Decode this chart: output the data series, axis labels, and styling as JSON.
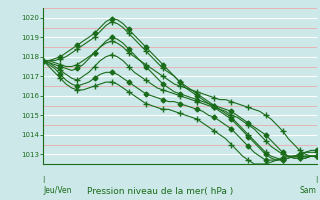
{
  "title": "Pression niveau de la mer( hPa )",
  "bg_color": "#cce8e8",
  "grid_color_major": "#ffffff",
  "grid_color_minor": "#f0a0a0",
  "line_color": "#1a6b1a",
  "marker_color": "#1a6b1a",
  "ylim": [
    1012.5,
    1020.5
  ],
  "yticks": [
    1013,
    1014,
    1015,
    1016,
    1017,
    1018,
    1019,
    1020
  ],
  "xlabel_left": "Jeu/Ven",
  "xlabel_right": "Sam",
  "n_points": 49,
  "series": [
    [
      1017.8,
      1017.8,
      1017.7,
      1017.6,
      1017.5,
      1017.5,
      1017.6,
      1017.8,
      1018.0,
      1018.2,
      1018.5,
      1018.7,
      1018.8,
      1018.7,
      1018.5,
      1018.2,
      1018.0,
      1017.8,
      1017.6,
      1017.4,
      1017.2,
      1017.0,
      1016.8,
      1016.6,
      1016.5,
      1016.4,
      1016.3,
      1016.2,
      1016.1,
      1016.0,
      1015.9,
      1015.8,
      1015.8,
      1015.7,
      1015.6,
      1015.5,
      1015.4,
      1015.3,
      1015.2,
      1015.0,
      1014.8,
      1014.5,
      1014.2,
      1013.8,
      1013.5,
      1013.2,
      1013.0,
      1012.9,
      1012.9
    ],
    [
      1017.8,
      1017.7,
      1017.6,
      1017.5,
      1017.4,
      1017.3,
      1017.4,
      1017.6,
      1017.9,
      1018.2,
      1018.5,
      1018.8,
      1019.0,
      1018.9,
      1018.7,
      1018.4,
      1018.1,
      1017.8,
      1017.5,
      1017.2,
      1016.9,
      1016.6,
      1016.4,
      1016.2,
      1016.1,
      1016.0,
      1015.9,
      1015.8,
      1015.7,
      1015.6,
      1015.5,
      1015.4,
      1015.3,
      1015.2,
      1015.0,
      1014.8,
      1014.6,
      1014.4,
      1014.2,
      1014.0,
      1013.7,
      1013.4,
      1013.1,
      1012.9,
      1012.8,
      1012.8,
      1012.8,
      1012.9,
      1012.9
    ],
    [
      1017.8,
      1017.7,
      1017.5,
      1017.3,
      1017.1,
      1016.9,
      1016.8,
      1017.0,
      1017.2,
      1017.5,
      1017.8,
      1018.0,
      1018.1,
      1018.0,
      1017.8,
      1017.5,
      1017.2,
      1017.0,
      1016.8,
      1016.6,
      1016.4,
      1016.3,
      1016.2,
      1016.1,
      1016.0,
      1015.9,
      1015.8,
      1015.7,
      1015.6,
      1015.5,
      1015.4,
      1015.3,
      1015.2,
      1015.0,
      1014.9,
      1014.7,
      1014.5,
      1014.3,
      1014.0,
      1013.7,
      1013.4,
      1013.2,
      1013.0,
      1012.9,
      1012.8,
      1012.8,
      1012.8,
      1012.9,
      1012.9
    ],
    [
      1017.8,
      1017.6,
      1017.4,
      1017.1,
      1016.8,
      1016.6,
      1016.5,
      1016.6,
      1016.7,
      1016.9,
      1017.1,
      1017.2,
      1017.2,
      1017.1,
      1016.9,
      1016.7,
      1016.5,
      1016.3,
      1016.1,
      1016.0,
      1015.9,
      1015.8,
      1015.7,
      1015.7,
      1015.6,
      1015.5,
      1015.4,
      1015.3,
      1015.2,
      1015.0,
      1014.9,
      1014.7,
      1014.5,
      1014.3,
      1014.0,
      1013.7,
      1013.4,
      1013.1,
      1012.9,
      1012.7,
      1012.7,
      1012.7,
      1012.8,
      1012.9,
      1012.9,
      1012.9,
      1012.9,
      1012.9,
      1012.9
    ],
    [
      1017.8,
      1017.5,
      1017.2,
      1016.9,
      1016.6,
      1016.4,
      1016.3,
      1016.3,
      1016.4,
      1016.5,
      1016.6,
      1016.7,
      1016.7,
      1016.6,
      1016.4,
      1016.2,
      1016.0,
      1015.8,
      1015.6,
      1015.5,
      1015.4,
      1015.3,
      1015.3,
      1015.2,
      1015.1,
      1015.0,
      1014.9,
      1014.8,
      1014.6,
      1014.4,
      1014.2,
      1014.0,
      1013.8,
      1013.5,
      1013.2,
      1012.9,
      1012.7,
      1012.5,
      1012.5,
      1012.5,
      1012.6,
      1012.7,
      1012.8,
      1012.9,
      1012.9,
      1012.9,
      1012.9,
      1012.9,
      1012.9
    ],
    [
      1017.8,
      1017.8,
      1017.9,
      1018.0,
      1018.2,
      1018.4,
      1018.6,
      1018.8,
      1019.0,
      1019.2,
      1019.5,
      1019.8,
      1019.95,
      1019.9,
      1019.7,
      1019.4,
      1019.1,
      1018.8,
      1018.5,
      1018.2,
      1017.9,
      1017.6,
      1017.3,
      1017.0,
      1016.7,
      1016.4,
      1016.2,
      1016.0,
      1015.8,
      1015.6,
      1015.4,
      1015.2,
      1015.0,
      1014.8,
      1014.5,
      1014.2,
      1013.9,
      1013.6,
      1013.3,
      1013.0,
      1012.8,
      1012.7,
      1012.7,
      1012.8,
      1012.9,
      1013.0,
      1013.1,
      1013.2,
      1013.2
    ],
    [
      1017.8,
      1017.8,
      1017.8,
      1017.9,
      1018.0,
      1018.2,
      1018.4,
      1018.6,
      1018.8,
      1019.0,
      1019.3,
      1019.6,
      1019.8,
      1019.7,
      1019.5,
      1019.2,
      1018.9,
      1018.6,
      1018.3,
      1018.0,
      1017.7,
      1017.4,
      1017.2,
      1017.0,
      1016.7,
      1016.5,
      1016.3,
      1016.1,
      1015.9,
      1015.7,
      1015.5,
      1015.3,
      1015.1,
      1014.9,
      1014.6,
      1014.3,
      1014.0,
      1013.7,
      1013.4,
      1013.1,
      1012.9,
      1012.8,
      1012.7,
      1012.8,
      1012.9,
      1013.0,
      1013.1,
      1013.1,
      1013.1
    ]
  ]
}
